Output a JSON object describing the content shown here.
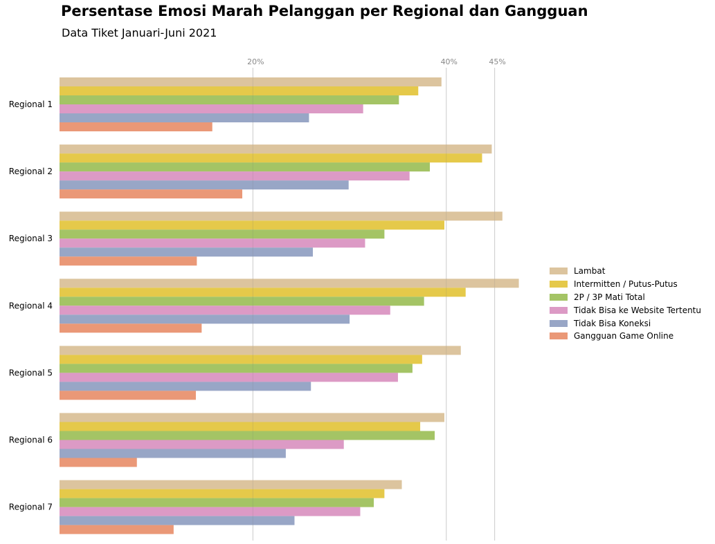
{
  "header": {
    "title": "Persentase Emosi Marah Pelanggan per Regional dan Gangguan",
    "subtitle": "Data Tiket Januari-Juni 2021"
  },
  "chart_data": {
    "type": "bar",
    "orientation": "horizontal",
    "title": "Persentase Emosi Marah Pelanggan per Regional dan Gangguan",
    "subtitle": "Data Tiket Januari-Juni 2021",
    "xlabel": "",
    "ylabel": "",
    "xlim": [
      0,
      50
    ],
    "xticks": [
      20,
      40,
      45
    ],
    "xtick_labels": [
      "20%",
      "40%",
      "45%"
    ],
    "grid": "vertical lines at ticks",
    "legend_position": "right",
    "categories": [
      "Regional 1",
      "Regional 2",
      "Regional 3",
      "Regional 4",
      "Regional 5",
      "Regional 6",
      "Regional 7"
    ],
    "series": [
      {
        "name": "Lambat",
        "color": "#dcc49e",
        "values": [
          39.5,
          44.7,
          45.8,
          47.5,
          41.5,
          39.8,
          35.4
        ]
      },
      {
        "name": "Intermitten / Putus-Putus",
        "color": "#e5c94a",
        "values": [
          37.1,
          43.7,
          39.8,
          42.0,
          37.5,
          37.3,
          33.6
        ]
      },
      {
        "name": "2P / 3P Mati Total",
        "color": "#a4c465",
        "values": [
          35.1,
          38.3,
          33.6,
          37.7,
          36.5,
          38.8,
          32.5
        ]
      },
      {
        "name": "Tidak Bisa ke Website Tertentu",
        "color": "#dc9ac5",
        "values": [
          31.4,
          36.2,
          31.6,
          34.2,
          35.0,
          29.4,
          31.1
        ]
      },
      {
        "name": "Tidak Bisa Koneksi",
        "color": "#98a6c6",
        "values": [
          25.8,
          29.9,
          26.2,
          30.0,
          26.0,
          23.4,
          24.3
        ]
      },
      {
        "name": "Gangguan Game Online",
        "color": "#ea9877",
        "values": [
          15.8,
          18.9,
          14.2,
          14.7,
          14.1,
          8.0,
          11.8
        ]
      }
    ]
  }
}
